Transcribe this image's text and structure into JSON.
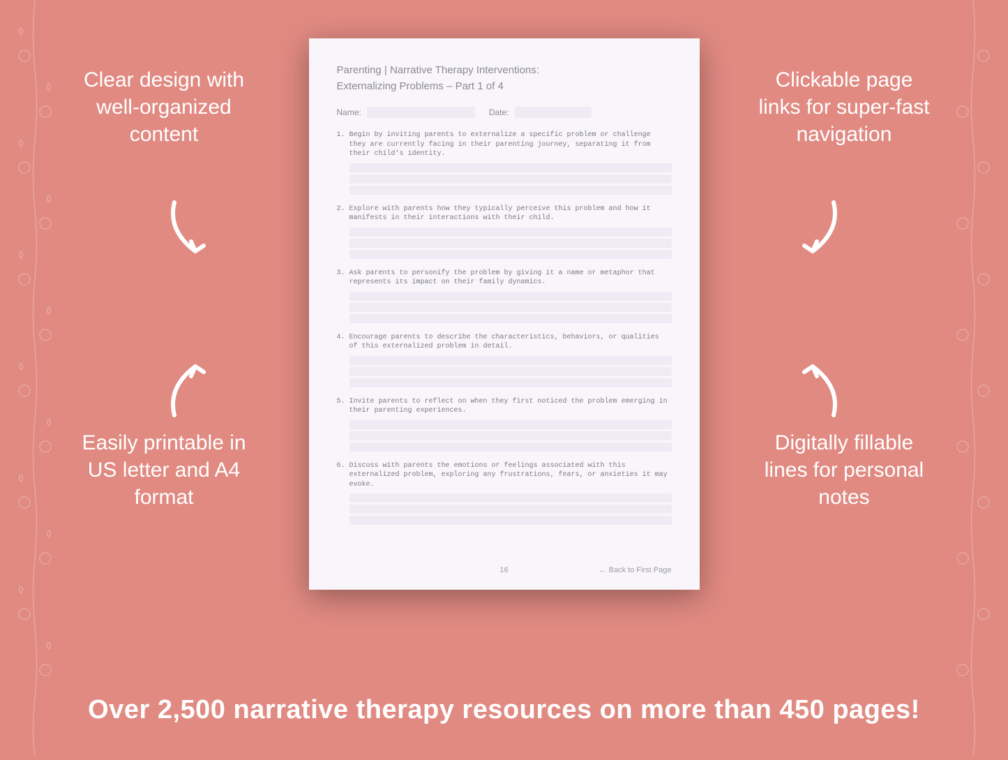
{
  "colors": {
    "background": "#e08a82",
    "callout_text": "#ffffff",
    "page_bg": "#f9f6fb",
    "page_text": "#8a8896",
    "field_bg": "#efeaf4",
    "question_text": "#7a7886",
    "footer_text": "#9a98a6"
  },
  "callouts": {
    "top_left": "Clear design with well-organized content",
    "top_right": "Clickable page links for super-fast navigation",
    "bottom_left": "Easily printable in US letter and A4 format",
    "bottom_right": "Digitally fillable lines for personal notes"
  },
  "page": {
    "header_line1": "Parenting | Narrative Therapy Interventions:",
    "header_line2": "Externalizing Problems – Part 1 of 4",
    "name_label": "Name:",
    "date_label": "Date:",
    "questions": [
      {
        "num": "1.",
        "text": "Begin by inviting parents to externalize a specific problem or challenge they are currently facing in their parenting journey, separating it from their child's identity."
      },
      {
        "num": "2.",
        "text": "Explore with parents how they typically perceive this problem and how it manifests in their interactions with their child."
      },
      {
        "num": "3.",
        "text": "Ask parents to personify the problem by giving it a name or metaphor that represents its impact on their family dynamics."
      },
      {
        "num": "4.",
        "text": "Encourage parents to describe the characteristics, behaviors, or qualities of this externalized problem in detail."
      },
      {
        "num": "5.",
        "text": "Invite parents to reflect on when they first noticed the problem emerging in their parenting experiences."
      },
      {
        "num": "6.",
        "text": "Discuss with parents the emotions or feelings associated with this externalized problem, exploring any frustrations, fears, or anxieties it may evoke."
      }
    ],
    "page_number": "16",
    "back_link": "← Back to First Page"
  },
  "bottom_banner": "Over 2,500 narrative therapy resources on more than 450 pages!"
}
